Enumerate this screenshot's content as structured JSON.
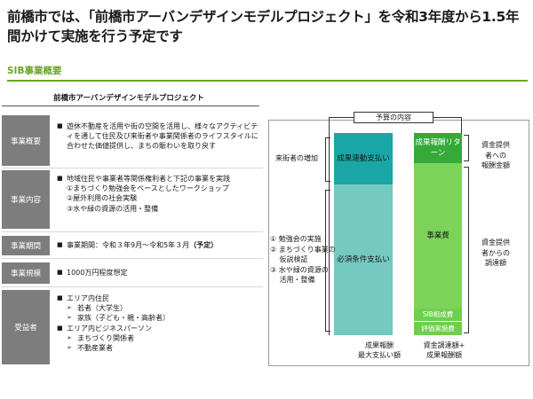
{
  "title": "前橋市では、「前橋市アーバンデザインモデルプロジェクト」を令和3年度から1.5年間かけて実施を行う予定です",
  "section_heading": "SIB事業概要",
  "project_title": "前橋市アーバンデザインモデルプロジェクト",
  "rows": {
    "overview": {
      "label": "事業概要",
      "text": "遊休不動産を活用や街の空間を活用し、様々なアクティビティを通して住民及び来街者や事業関係者のライフスタイルに合わせた価値提供し、まちの賑わいを取り戻す"
    },
    "content": {
      "label": "事業内容",
      "lead": "地域住民や事業者等関係権利者と下記の事業を実践",
      "items": [
        "①まちづくり勉強会をベースとしたワークショップ",
        "②屋外利用の社会実験",
        "③水や緑の資源の活用・整備"
      ]
    },
    "period": {
      "label": "事業期間",
      "text": "事業期間：令和３年9月～令和5年３月",
      "note": "（予定）"
    },
    "scale": {
      "label": "事業規模",
      "text": "1000万円程度想定"
    },
    "beneficiaries": {
      "label": "受益者",
      "group1": "エリア内住民",
      "group1_items": [
        "若者（大学生）",
        "家族（子ども・親・高齢者）"
      ],
      "group2": "エリア内ビジネスパーソン",
      "group2_items": [
        "まちづくり関係者",
        "不動産業者"
      ]
    }
  },
  "diagram": {
    "budget_label": "予算の内容",
    "left_top_box": "成果連動支払い",
    "left_bottom_box": "必須条件支払い",
    "right_top_box": "成果報酬リターン",
    "right_middle_box": "事業費",
    "right_bottom_box_1": "SIB組成費",
    "right_bottom_box_2": "評価実施費",
    "visitors_label": "来街者の増加",
    "conditions": [
      "① 勉強会の実施",
      "② まちづくり事業の",
      "　 仮説検証",
      "③ 水や緑の資源の",
      "　 活用・整備"
    ],
    "right_label_1": [
      "資金提供",
      "者への",
      "報酬金額"
    ],
    "right_label_2": [
      "資金提供",
      "者からの",
      "調達額"
    ],
    "footer_left": [
      "成果報酬",
      "最大支払い額"
    ],
    "footer_right": [
      "資金調達額+",
      "成果報酬額"
    ]
  },
  "colors": {
    "accent": "#6aa52a",
    "label_bg": "#7d7d7d",
    "teal_dark": "#1aa6a6",
    "teal_light": "#74c9c1",
    "green_dark": "#35a93a",
    "green_light": "#7dd35a"
  }
}
